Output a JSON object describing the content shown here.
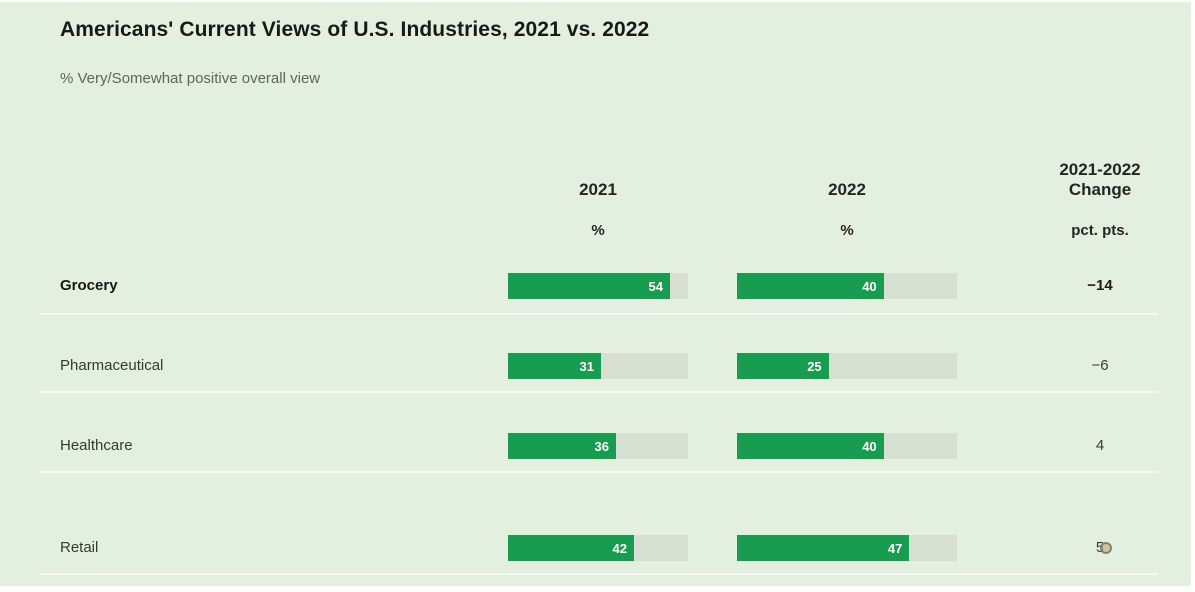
{
  "title": "Americans' Current Views of U.S. Industries, 2021 vs. 2022",
  "subtitle": "% Very/Somewhat positive overall view",
  "columns": {
    "col1_label": "2021",
    "col1_unit": "%",
    "col2_label": "2022",
    "col2_unit": "%",
    "change_label_line1": "2021-2022",
    "change_label_line2": "Change",
    "change_unit": "pct. pts."
  },
  "colors": {
    "background": "#e3f0e0",
    "bar_fill": "#189c4f",
    "bar_track": "#d6dfd1",
    "title_text": "#191919",
    "subtitle_text": "#5f655f"
  },
  "chart_data": {
    "type": "bar",
    "title": "Americans' Current Views of U.S. Industries, 2021 vs. 2022",
    "subtitle": "% Very/Somewhat positive overall view",
    "categories": [
      "Grocery",
      "Pharmaceutical",
      "Healthcare",
      "Retail"
    ],
    "series": [
      {
        "name": "2021",
        "values": [
          54,
          31,
          36,
          42
        ]
      },
      {
        "name": "2022",
        "values": [
          40,
          25,
          40,
          47
        ]
      }
    ],
    "change_series": {
      "name": "2021-2022 Change (pct. pts.)",
      "values": [
        -14,
        -6,
        4,
        5
      ]
    },
    "axis_max": 60,
    "unit": "%",
    "change_unit": "pct. pts.",
    "legend_position": "column-headers",
    "grid": false,
    "rows": [
      {
        "label": "Grocery",
        "v2021": "54",
        "v2022": "40",
        "change": "−14"
      },
      {
        "label": "Pharmaceutical",
        "v2021": "31",
        "v2022": "25",
        "change": "−6"
      },
      {
        "label": "Healthcare",
        "v2021": "36",
        "v2022": "40",
        "change": "4"
      },
      {
        "label": "Retail",
        "v2021": "42",
        "v2022": "47",
        "change": "5"
      }
    ]
  }
}
